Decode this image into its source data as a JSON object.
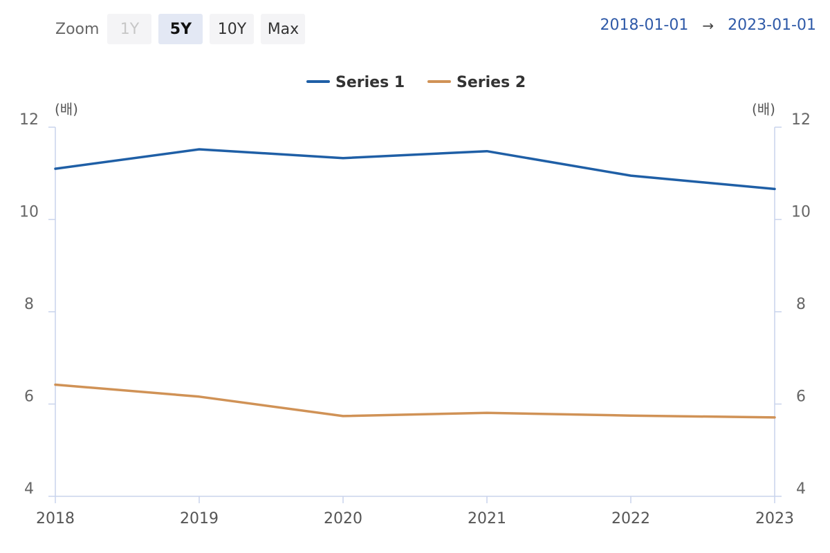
{
  "toolbar": {
    "zoom_label": "Zoom",
    "buttons": [
      {
        "label": "1Y",
        "state": "disabled"
      },
      {
        "label": "5Y",
        "state": "selected"
      },
      {
        "label": "10Y",
        "state": "normal"
      },
      {
        "label": "Max",
        "state": "normal"
      }
    ]
  },
  "range": {
    "from": "2018-01-01",
    "arrow": "→",
    "to": "2023-01-01"
  },
  "chart_data": {
    "type": "line",
    "x": [
      "2018",
      "2019",
      "2020",
      "2021",
      "2022",
      "2023"
    ],
    "series": [
      {
        "name": "Series 1",
        "color": "#1f5fa6",
        "values": [
          11.1,
          11.52,
          11.33,
          11.48,
          10.95,
          10.66
        ]
      },
      {
        "name": "Series 2",
        "color": "#d09256",
        "values": [
          6.42,
          6.16,
          5.74,
          5.81,
          5.75,
          5.71
        ]
      }
    ],
    "ylim": [
      4,
      12
    ],
    "yticks": [
      4,
      6,
      8,
      10,
      12
    ],
    "y_unit_left": "(배)",
    "y_unit_right": "(배)",
    "legend_position": "top-center",
    "grid": false
  }
}
